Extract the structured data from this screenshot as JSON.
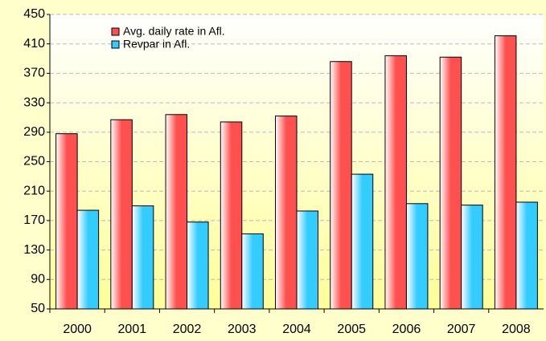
{
  "chart_data": {
    "type": "bar",
    "categories": [
      "2000",
      "2001",
      "2002",
      "2003",
      "2004",
      "2005",
      "2006",
      "2007",
      "2008"
    ],
    "series": [
      {
        "name": "Avg. daily rate in Afl.",
        "color": "#ff5050",
        "values": [
          288,
          307,
          314,
          304,
          312,
          386,
          394,
          392,
          421
        ]
      },
      {
        "name": "Revpar in Afl.",
        "color": "#33ccff",
        "values": [
          184,
          190,
          168,
          152,
          183,
          233,
          193,
          191,
          195
        ]
      }
    ],
    "ylim": [
      50,
      450
    ],
    "yticks": [
      50,
      90,
      130,
      170,
      210,
      250,
      290,
      330,
      370,
      410,
      450
    ],
    "grid": true,
    "legend": "top-left"
  }
}
